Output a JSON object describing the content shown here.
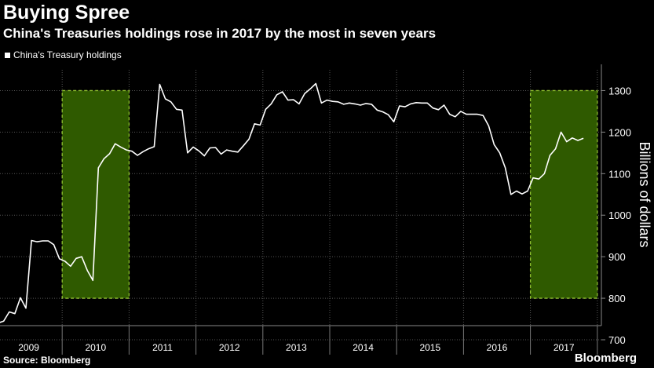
{
  "header": {
    "title": "Buying Spree",
    "subtitle": "China's Treasuries holdings rose in 2017 by the most in seven years"
  },
  "footer": {
    "source": "Source: Bloomberg",
    "brand": "Bloomberg"
  },
  "colors": {
    "background": "#000000",
    "line": "#ffffff",
    "highlight_fill": "#2f5a00",
    "highlight_border": "#8fbf2f",
    "grid": "#555555"
  },
  "chart_data": {
    "type": "line",
    "xlabel": "",
    "ylabel": "Billions of dollars",
    "ylim": [
      700,
      1350
    ],
    "yticks": [
      700,
      800,
      900,
      1000,
      1100,
      1200,
      1300
    ],
    "x_categories": [
      "2009",
      "2010",
      "2011",
      "2012",
      "2013",
      "2014",
      "2015",
      "2016",
      "2017"
    ],
    "legend": "top-left",
    "grid": true,
    "series": [
      {
        "name": "China's Treasury holdings",
        "start": "2009-01",
        "frequency": "monthly",
        "values": [
          740,
          745,
          767,
          763,
          801,
          776,
          939,
          936,
          938,
          938,
          929,
          895,
          889,
          877,
          896,
          900,
          867,
          843,
          1114,
          1136,
          1148,
          1172,
          1164,
          1157,
          1154,
          1144,
          1153,
          1160,
          1165,
          1315,
          1280,
          1273,
          1255,
          1253,
          1150,
          1164,
          1155,
          1143,
          1162,
          1163,
          1147,
          1157,
          1154,
          1152,
          1167,
          1183,
          1220,
          1217,
          1255,
          1268,
          1290,
          1297,
          1277,
          1278,
          1268,
          1293,
          1304,
          1317,
          1270,
          1277,
          1274,
          1273,
          1267,
          1270,
          1268,
          1265,
          1269,
          1267,
          1253,
          1249,
          1242,
          1225,
          1263,
          1261,
          1268,
          1271,
          1270,
          1270,
          1258,
          1254,
          1265,
          1243,
          1237,
          1250,
          1243,
          1243,
          1243,
          1240,
          1215,
          1170,
          1150,
          1114,
          1050,
          1058,
          1051,
          1058,
          1090,
          1087,
          1100,
          1144,
          1160,
          1200,
          1177,
          1186,
          1180,
          1185
        ]
      }
    ],
    "highlights": [
      {
        "from": "2010-01",
        "to": "2010-12",
        "ylim": [
          800,
          1300
        ]
      },
      {
        "from": "2017-01",
        "to": "2017-12",
        "ylim": [
          800,
          1300
        ]
      }
    ]
  }
}
